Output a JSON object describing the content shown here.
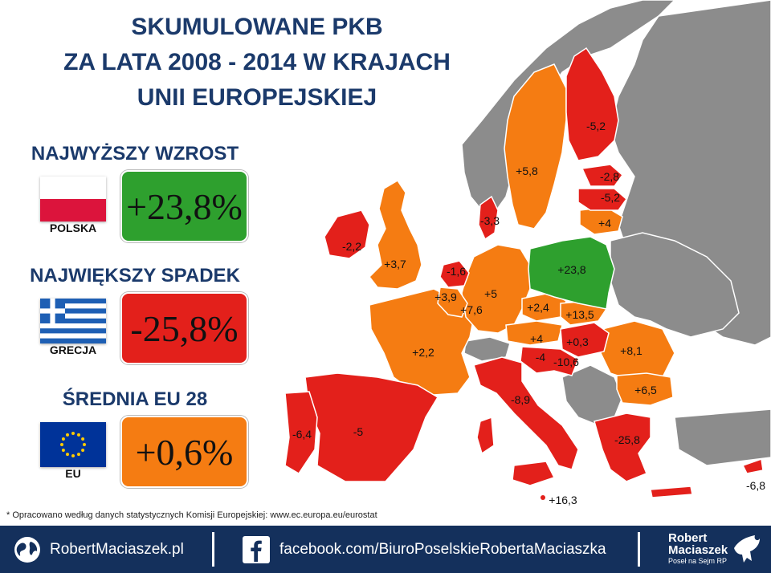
{
  "title": {
    "lines": [
      "SKUMULOWANE PKB",
      "ZA LATA 2008 - 2014 W KRAJACH",
      "UNII EUROPEJSKIEJ"
    ]
  },
  "highest": {
    "heading": "NAJWYŻSZY WZROST",
    "country": "POLSKA",
    "value": "+23,8%",
    "color": "#2ea02e"
  },
  "lowest": {
    "heading": "NAJWIĘKSZY SPADEK",
    "country": "GRECJA",
    "value": "-25,8%",
    "color": "#e3201b"
  },
  "average": {
    "heading": "ŚREDNIA EU 28",
    "country": "EU",
    "value": "+0,6%",
    "color": "#f57c12"
  },
  "legend_colors": {
    "growth_high": "#2ea02e",
    "growth": "#f57c12",
    "decline": "#e3201b",
    "non_eu": "#8c8c8c",
    "sea": "#ffffff"
  },
  "map_labels": {
    "finland": "-5,2",
    "sweden": "+5,8",
    "estonia": "-2,8",
    "latvia": "-5,2",
    "lithuania": "+4",
    "denmark": "-3,3",
    "ireland": "-2,2",
    "uk": "+3,7",
    "netherlands": "-1,6",
    "belgium": "+3,9",
    "luxembourg": "+7,6",
    "germany": "+5",
    "poland": "+23,8",
    "czech": "+2,4",
    "slovakia": "+13,5",
    "austria": "+4",
    "hungary": "+0,3",
    "slovenia": "-4",
    "croatia": "-10,6",
    "romania": "+8,1",
    "bulgaria": "+6,5",
    "france": "+2,2",
    "spain": "-5",
    "portugal": "-6,4",
    "italy": "-8,9",
    "greece": "-25,8",
    "malta": "+16,3",
    "cyprus": "-6,8"
  },
  "footnote": "* Opracowano według danych statystycznych Komisji Europejskiej: www.ec.europa.eu/eurostat",
  "footer": {
    "website": "RobertMaciaszek.pl",
    "facebook": "facebook.com/BiuroPoselskieRobertaMaciaszka",
    "brand_line1": "Robert",
    "brand_line2": "Maciaszek",
    "brand_line3": "Poseł na Sejm RP"
  }
}
